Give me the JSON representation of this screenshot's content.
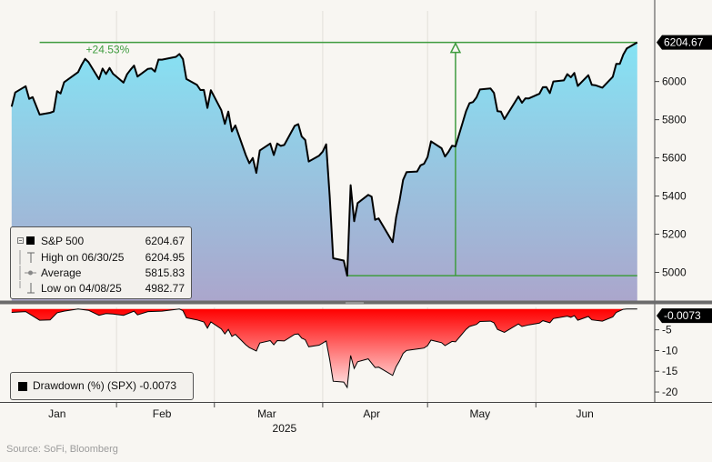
{
  "chart_data": [
    {
      "type": "area",
      "series_name": "S&P 500",
      "x_range": [
        "2025-01-02",
        "2025-06-30"
      ],
      "ylim": [
        4850,
        6370
      ],
      "y_ticks": [
        5000,
        5200,
        5400,
        5600,
        5800,
        6000
      ],
      "y_tick_labels": [
        "5000",
        "5200",
        "5400",
        "5600",
        "5800",
        "6000"
      ],
      "current_value_label": "6204.67",
      "gain_annotation": "+24.53%",
      "low_reference": 4982.77,
      "high_reference": 6204.95,
      "points": [
        [
          "2025-01-02",
          5868.55
        ],
        [
          "2025-01-03",
          5942.47
        ],
        [
          "2025-01-06",
          5975.38
        ],
        [
          "2025-01-07",
          5909.03
        ],
        [
          "2025-01-08",
          5918.25
        ],
        [
          "2025-01-10",
          5827.04
        ],
        [
          "2025-01-13",
          5836.22
        ],
        [
          "2025-01-14",
          5842.91
        ],
        [
          "2025-01-15",
          5949.91
        ],
        [
          "2025-01-16",
          5937.34
        ],
        [
          "2025-01-17",
          5996.66
        ],
        [
          "2025-01-21",
          6049.24
        ],
        [
          "2025-01-22",
          6086.37
        ],
        [
          "2025-01-23",
          6118.71
        ],
        [
          "2025-01-24",
          6101.24
        ],
        [
          "2025-01-27",
          6012.28
        ],
        [
          "2025-01-28",
          6067.7
        ],
        [
          "2025-01-29",
          6039.31
        ],
        [
          "2025-01-30",
          6071.17
        ],
        [
          "2025-01-31",
          6040.53
        ],
        [
          "2025-02-03",
          5994.57
        ],
        [
          "2025-02-04",
          6037.88
        ],
        [
          "2025-02-05",
          6061.48
        ],
        [
          "2025-02-06",
          6083.57
        ],
        [
          "2025-02-07",
          6025.99
        ],
        [
          "2025-02-10",
          6066.44
        ],
        [
          "2025-02-11",
          6068.5
        ],
        [
          "2025-02-12",
          6051.97
        ],
        [
          "2025-02-13",
          6115.07
        ],
        [
          "2025-02-14",
          6114.63
        ],
        [
          "2025-02-18",
          6129.58
        ],
        [
          "2025-02-19",
          6144.15
        ],
        [
          "2025-02-20",
          6117.52
        ],
        [
          "2025-02-21",
          6013.13
        ],
        [
          "2025-02-24",
          5983.25
        ],
        [
          "2025-02-25",
          5955.25
        ],
        [
          "2025-02-26",
          5956.06
        ],
        [
          "2025-02-27",
          5861.57
        ],
        [
          "2025-02-28",
          5954.5
        ],
        [
          "2025-03-03",
          5849.72
        ],
        [
          "2025-03-04",
          5778.15
        ],
        [
          "2025-03-05",
          5842.63
        ],
        [
          "2025-03-06",
          5738.52
        ],
        [
          "2025-03-07",
          5770.2
        ],
        [
          "2025-03-10",
          5614.56
        ],
        [
          "2025-03-11",
          5572.07
        ],
        [
          "2025-03-12",
          5599.3
        ],
        [
          "2025-03-13",
          5521.52
        ],
        [
          "2025-03-14",
          5638.94
        ],
        [
          "2025-03-17",
          5675.12
        ],
        [
          "2025-03-18",
          5614.66
        ],
        [
          "2025-03-19",
          5675.29
        ],
        [
          "2025-03-20",
          5662.89
        ],
        [
          "2025-03-21",
          5667.56
        ],
        [
          "2025-03-24",
          5767.57
        ],
        [
          "2025-03-25",
          5776.65
        ],
        [
          "2025-03-26",
          5712.2
        ],
        [
          "2025-03-27",
          5693.31
        ],
        [
          "2025-03-28",
          5580.94
        ],
        [
          "2025-03-31",
          5611.85
        ],
        [
          "2025-04-01",
          5633.07
        ],
        [
          "2025-04-02",
          5670.97
        ],
        [
          "2025-04-03",
          5396.52
        ],
        [
          "2025-04-04",
          5074.08
        ],
        [
          "2025-04-07",
          5062.25
        ],
        [
          "2025-04-08",
          4982.77
        ],
        [
          "2025-04-09",
          5456.9
        ],
        [
          "2025-04-10",
          5268.05
        ],
        [
          "2025-04-11",
          5363.36
        ],
        [
          "2025-04-14",
          5405.97
        ],
        [
          "2025-04-15",
          5396.63
        ],
        [
          "2025-04-16",
          5275.7
        ],
        [
          "2025-04-17",
          5282.7
        ],
        [
          "2025-04-21",
          5158.2
        ],
        [
          "2025-04-22",
          5287.76
        ],
        [
          "2025-04-23",
          5375.86
        ],
        [
          "2025-04-24",
          5484.77
        ],
        [
          "2025-04-25",
          5525.21
        ],
        [
          "2025-04-28",
          5528.75
        ],
        [
          "2025-04-29",
          5560.83
        ],
        [
          "2025-04-30",
          5569.06
        ],
        [
          "2025-05-01",
          5604.14
        ],
        [
          "2025-05-02",
          5686.67
        ],
        [
          "2025-05-05",
          5650.38
        ],
        [
          "2025-05-06",
          5606.91
        ],
        [
          "2025-05-07",
          5631.28
        ],
        [
          "2025-05-08",
          5663.94
        ],
        [
          "2025-05-09",
          5659.91
        ],
        [
          "2025-05-12",
          5844.19
        ],
        [
          "2025-05-13",
          5886.55
        ],
        [
          "2025-05-14",
          5892.58
        ],
        [
          "2025-05-15",
          5916.93
        ],
        [
          "2025-05-16",
          5958.38
        ],
        [
          "2025-05-19",
          5963.6
        ],
        [
          "2025-05-20",
          5940.46
        ],
        [
          "2025-05-21",
          5844.61
        ],
        [
          "2025-05-22",
          5842.01
        ],
        [
          "2025-05-23",
          5802.82
        ],
        [
          "2025-05-27",
          5921.54
        ],
        [
          "2025-05-28",
          5888.55
        ],
        [
          "2025-05-29",
          5912.17
        ],
        [
          "2025-05-30",
          5911.69
        ],
        [
          "2025-06-02",
          5935.94
        ],
        [
          "2025-06-03",
          5970.37
        ],
        [
          "2025-06-04",
          5970.81
        ],
        [
          "2025-06-05",
          5939.3
        ],
        [
          "2025-06-06",
          6000.36
        ],
        [
          "2025-06-09",
          6005.88
        ],
        [
          "2025-06-10",
          6038.81
        ],
        [
          "2025-06-11",
          6022.24
        ],
        [
          "2025-06-12",
          6045.26
        ],
        [
          "2025-06-13",
          5976.97
        ],
        [
          "2025-06-16",
          6033.11
        ],
        [
          "2025-06-17",
          5982.72
        ],
        [
          "2025-06-18",
          5980.87
        ],
        [
          "2025-06-20",
          5967.84
        ],
        [
          "2025-06-23",
          6025.17
        ],
        [
          "2025-06-24",
          6092.18
        ],
        [
          "2025-06-25",
          6092.16
        ],
        [
          "2025-06-26",
          6141.02
        ],
        [
          "2025-06-27",
          6173.07
        ],
        [
          "2025-06-30",
          6204.95
        ]
      ]
    },
    {
      "type": "area",
      "series_name": "Drawdown (%) (SPX)",
      "ylim": [
        -22.4,
        0.4
      ],
      "y_ticks": [
        -5,
        -10,
        -15,
        -20
      ],
      "y_tick_labels": [
        "-5",
        "-10",
        "-15",
        "-20"
      ],
      "current_value_label": "-0.0073",
      "points": [
        [
          "2025-01-02",
          -0.8
        ],
        [
          "2025-01-06",
          -0.6
        ],
        [
          "2025-01-10",
          -2.7
        ],
        [
          "2025-01-13",
          -2.6
        ],
        [
          "2025-01-15",
          -0.9
        ],
        [
          "2025-01-17",
          -0.5
        ],
        [
          "2025-01-21",
          0
        ],
        [
          "2025-01-24",
          -0.3
        ],
        [
          "2025-01-27",
          -1.5
        ],
        [
          "2025-01-29",
          -1.1
        ],
        [
          "2025-01-31",
          -1.2
        ],
        [
          "2025-02-03",
          -1.5
        ],
        [
          "2025-02-06",
          -0.5
        ],
        [
          "2025-02-07",
          -1.4
        ],
        [
          "2025-02-10",
          -0.6
        ],
        [
          "2025-02-14",
          -0.5
        ],
        [
          "2025-02-19",
          0
        ],
        [
          "2025-02-20",
          -0.4
        ],
        [
          "2025-02-21",
          -2.1
        ],
        [
          "2025-02-24",
          -2.6
        ],
        [
          "2025-02-26",
          -3.1
        ],
        [
          "2025-02-27",
          -4.6
        ],
        [
          "2025-02-28",
          -3.1
        ],
        [
          "2025-03-03",
          -4.8
        ],
        [
          "2025-03-04",
          -6.0
        ],
        [
          "2025-03-05",
          -4.9
        ],
        [
          "2025-03-06",
          -6.6
        ],
        [
          "2025-03-07",
          -6.1
        ],
        [
          "2025-03-10",
          -8.6
        ],
        [
          "2025-03-11",
          -9.3
        ],
        [
          "2025-03-13",
          -10.1
        ],
        [
          "2025-03-14",
          -8.2
        ],
        [
          "2025-03-17",
          -7.6
        ],
        [
          "2025-03-18",
          -8.6
        ],
        [
          "2025-03-19",
          -7.6
        ],
        [
          "2025-03-21",
          -7.7
        ],
        [
          "2025-03-24",
          -6.1
        ],
        [
          "2025-03-25",
          -6.0
        ],
        [
          "2025-03-26",
          -7.0
        ],
        [
          "2025-03-27",
          -7.4
        ],
        [
          "2025-03-28",
          -9.1
        ],
        [
          "2025-03-31",
          -8.7
        ],
        [
          "2025-04-02",
          -7.7
        ],
        [
          "2025-04-03",
          -12.2
        ],
        [
          "2025-04-04",
          -17.4
        ],
        [
          "2025-04-07",
          -17.6
        ],
        [
          "2025-04-08",
          -18.9
        ],
        [
          "2025-04-09",
          -11.2
        ],
        [
          "2025-04-10",
          -14.3
        ],
        [
          "2025-04-11",
          -12.7
        ],
        [
          "2025-04-14",
          -12.0
        ],
        [
          "2025-04-16",
          -14.1
        ],
        [
          "2025-04-17",
          -14.0
        ],
        [
          "2025-04-21",
          -16.0
        ],
        [
          "2025-04-22",
          -13.9
        ],
        [
          "2025-04-23",
          -12.5
        ],
        [
          "2025-04-24",
          -10.7
        ],
        [
          "2025-04-25",
          -10.0
        ],
        [
          "2025-04-29",
          -9.5
        ],
        [
          "2025-04-30",
          -9.4
        ],
        [
          "2025-05-01",
          -8.8
        ],
        [
          "2025-05-02",
          -7.5
        ],
        [
          "2025-05-05",
          -8.1
        ],
        [
          "2025-05-06",
          -8.8
        ],
        [
          "2025-05-08",
          -7.8
        ],
        [
          "2025-05-09",
          -7.9
        ],
        [
          "2025-05-12",
          -4.9
        ],
        [
          "2025-05-13",
          -4.2
        ],
        [
          "2025-05-15",
          -3.7
        ],
        [
          "2025-05-16",
          -3.0
        ],
        [
          "2025-05-19",
          -2.9
        ],
        [
          "2025-05-20",
          -3.3
        ],
        [
          "2025-05-21",
          -4.9
        ],
        [
          "2025-05-23",
          -5.6
        ],
        [
          "2025-05-27",
          -3.6
        ],
        [
          "2025-05-28",
          -4.2
        ],
        [
          "2025-05-30",
          -3.8
        ],
        [
          "2025-06-02",
          -3.4
        ],
        [
          "2025-06-03",
          -2.8
        ],
        [
          "2025-06-05",
          -3.3
        ],
        [
          "2025-06-06",
          -2.3
        ],
        [
          "2025-06-10",
          -1.7
        ],
        [
          "2025-06-11",
          -2.0
        ],
        [
          "2025-06-12",
          -1.6
        ],
        [
          "2025-06-13",
          -2.7
        ],
        [
          "2025-06-16",
          -1.8
        ],
        [
          "2025-06-17",
          -2.6
        ],
        [
          "2025-06-20",
          -2.9
        ],
        [
          "2025-06-23",
          -1.9
        ],
        [
          "2025-06-24",
          -0.8
        ],
        [
          "2025-06-26",
          -0.05
        ],
        [
          "2025-06-27",
          0
        ],
        [
          "2025-06-30",
          0
        ]
      ]
    }
  ],
  "x_axis": {
    "month_labels": [
      {
        "label": "Jan",
        "date": "2025-01-15"
      },
      {
        "label": "Feb",
        "date": "2025-02-14"
      },
      {
        "label": "Mar",
        "date": "2025-03-16"
      },
      {
        "label": "Apr",
        "date": "2025-04-15"
      },
      {
        "label": "May",
        "date": "2025-05-16"
      },
      {
        "label": "Jun",
        "date": "2025-06-15"
      }
    ],
    "month_starts": [
      "2025-02-01",
      "2025-03-01",
      "2025-04-01",
      "2025-05-01",
      "2025-06-01"
    ],
    "year_label": "2025"
  },
  "legend": {
    "rows": [
      {
        "label": "S&P 500",
        "value": "6204.67"
      },
      {
        "label": "High on 06/30/25",
        "value": "6204.95"
      },
      {
        "label": "Average",
        "value": "5815.83"
      },
      {
        "label": "Low on 04/08/25",
        "value": "4982.77"
      }
    ],
    "drawdown_label": "Drawdown (%) (SPX) -0.0073"
  },
  "source": "Source: SoFi, Bloomberg",
  "colors": {
    "area_top": "#85e3f4",
    "area_bottom": "#aba6cc",
    "annotation_green": "#3f9c3f",
    "drawdown_top": "#ff0000",
    "drawdown_bottom": "#ffe3e3",
    "label_box": "#000000"
  }
}
